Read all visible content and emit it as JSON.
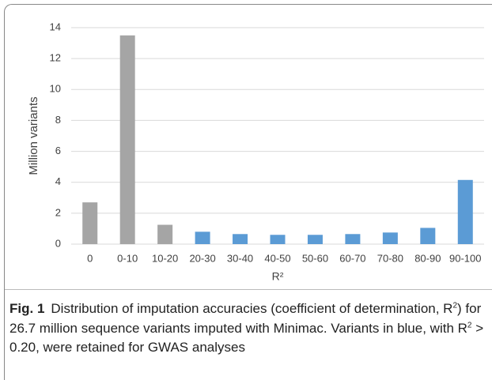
{
  "chart_data": {
    "type": "bar",
    "y_label": "Million variants",
    "x_label": "R²",
    "categories": [
      "0",
      "0-10",
      "10-20",
      "20-30",
      "30-40",
      "40-50",
      "50-60",
      "60-70",
      "70-80",
      "80-90",
      "90-100"
    ],
    "values": [
      2.7,
      13.5,
      1.25,
      0.8,
      0.65,
      0.6,
      0.6,
      0.65,
      0.75,
      1.05,
      4.15
    ],
    "colors": [
      "#a5a5a5",
      "#a5a5a5",
      "#a5a5a5",
      "#5b9bd5",
      "#5b9bd5",
      "#5b9bd5",
      "#5b9bd5",
      "#5b9bd5",
      "#5b9bd5",
      "#5b9bd5",
      "#5b9bd5"
    ],
    "ylim": [
      0,
      14
    ],
    "yticks": [
      0,
      2,
      4,
      6,
      8,
      10,
      12,
      14
    ],
    "grid": true
  },
  "caption": {
    "label": "Fig. 1",
    "parts": [
      "Distribution of imputation accuracies (coefficient of determination, R",
      "2",
      ") for 26.7 million sequence variants imputed with Minimac. Variants in blue, with R",
      "2",
      " > 0.20, were retained for GWAS analyses"
    ]
  }
}
